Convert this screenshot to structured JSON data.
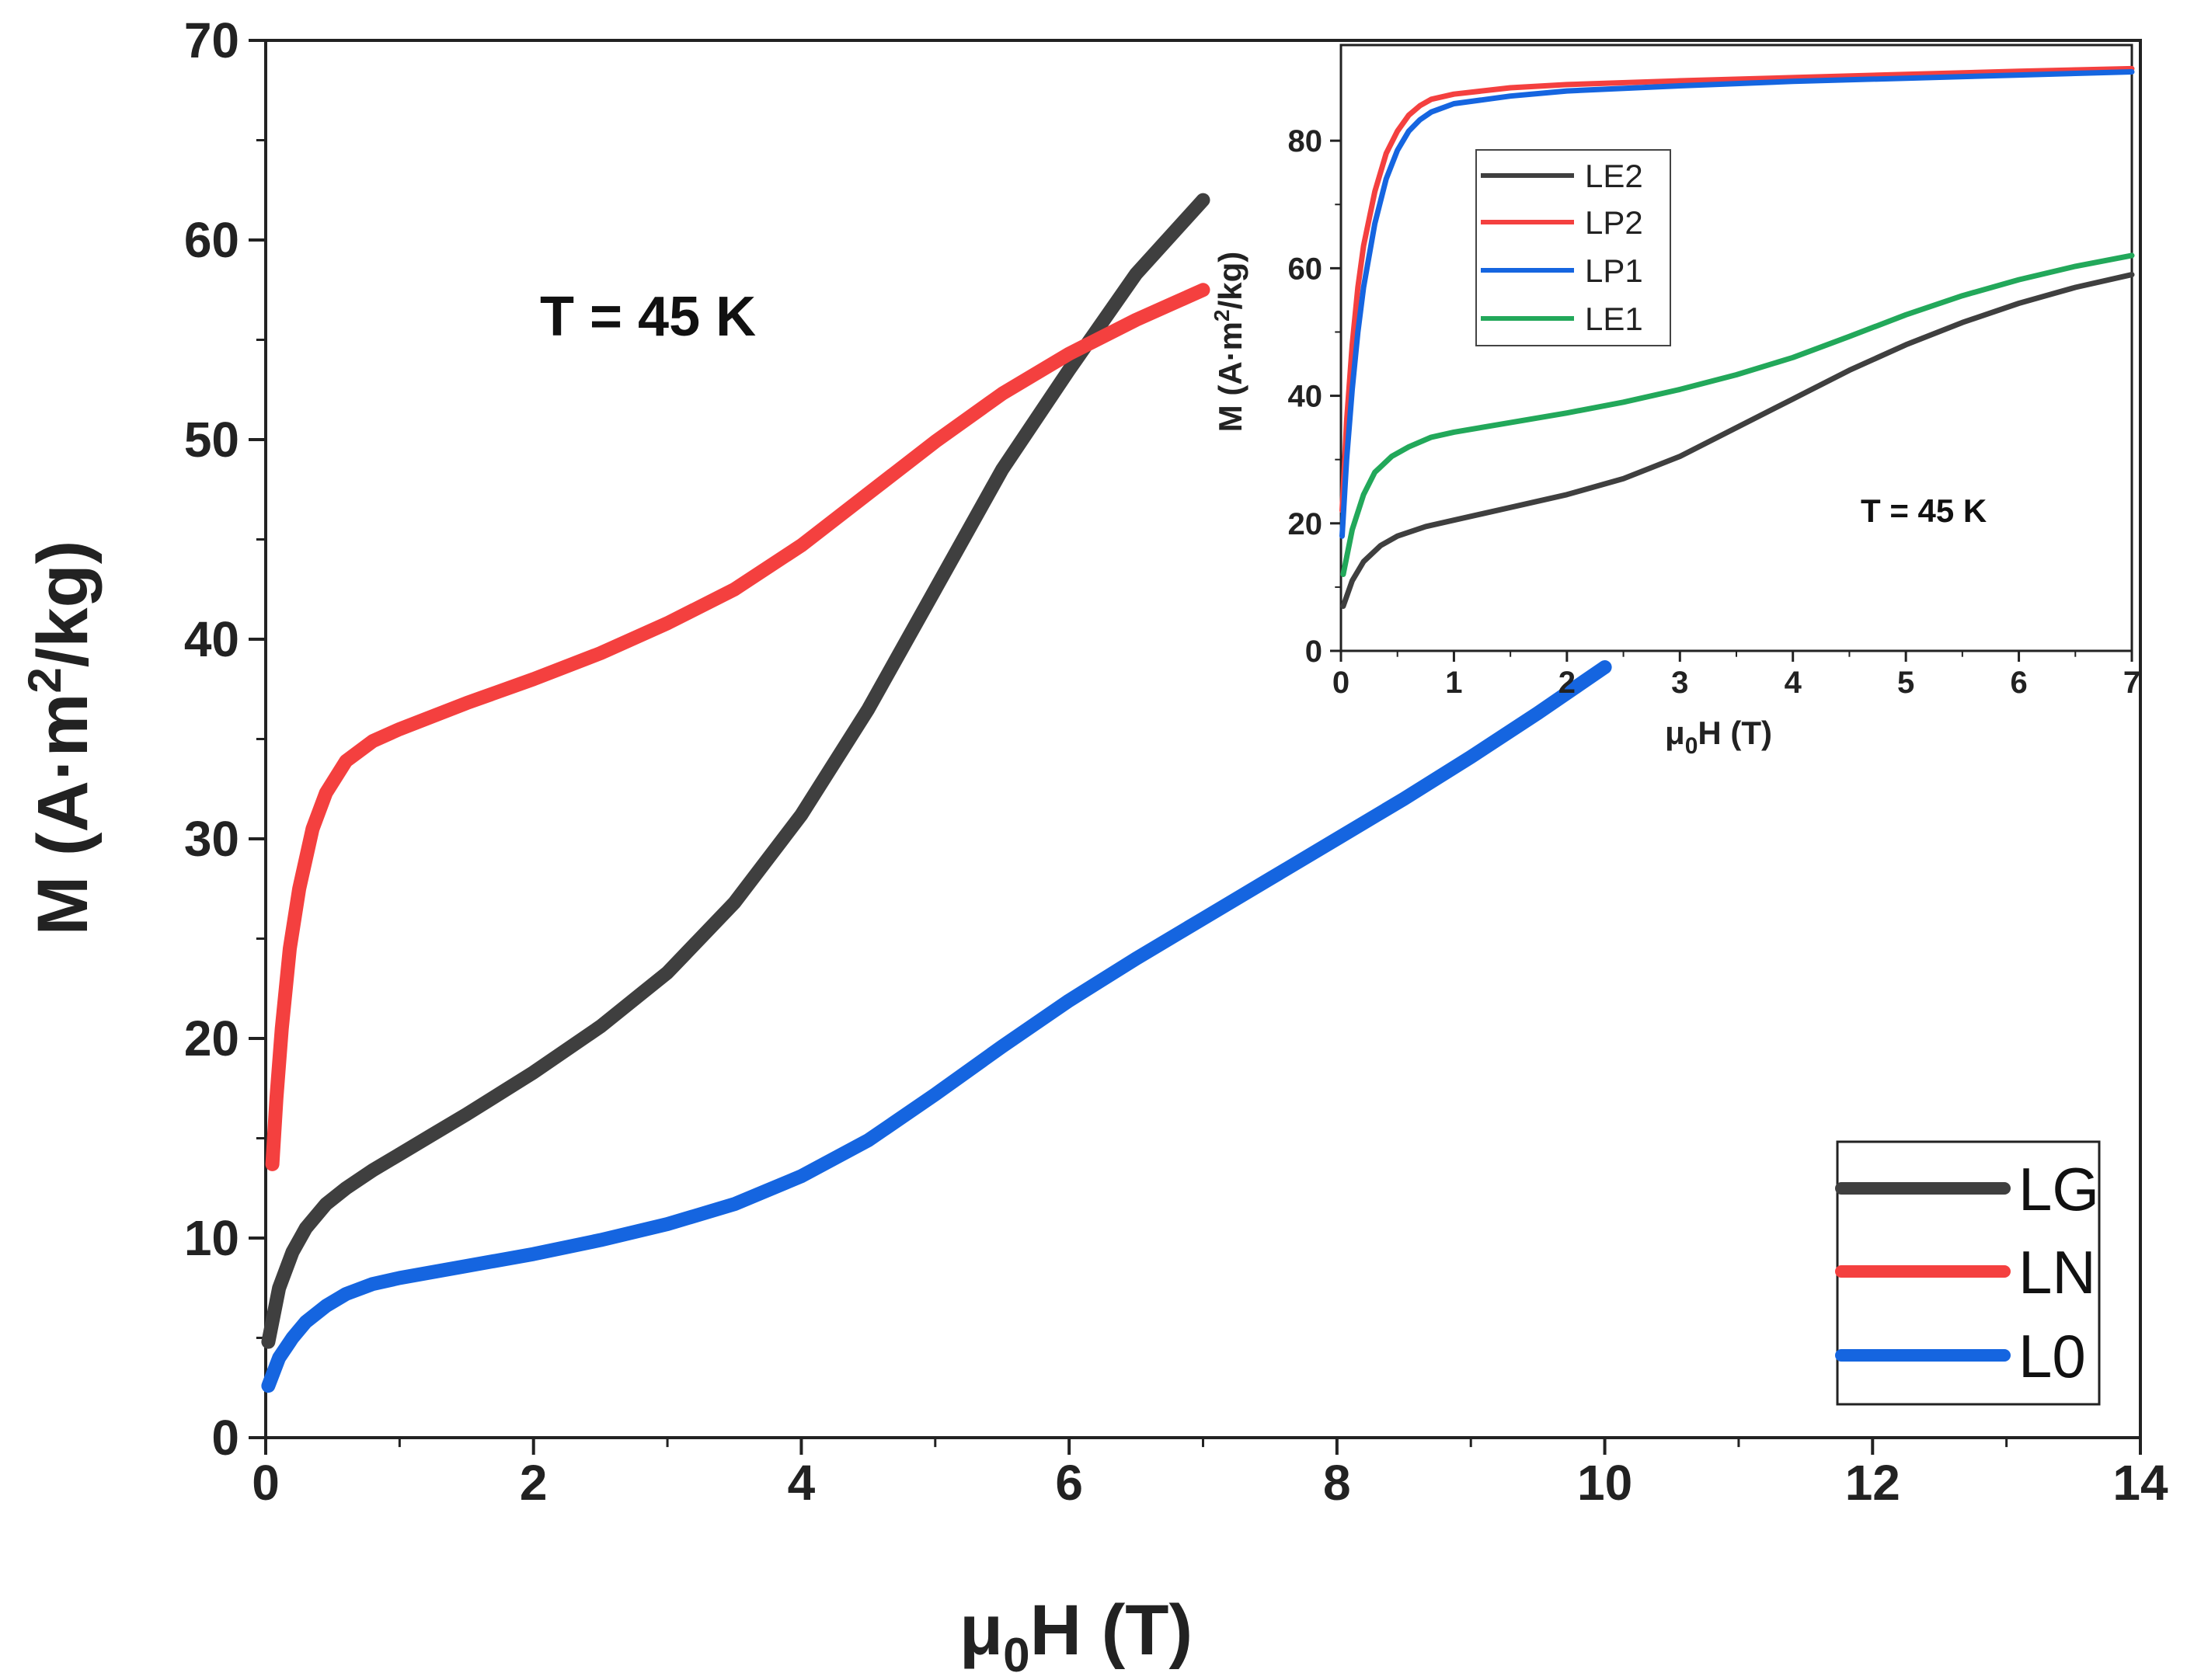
{
  "chart_data": [
    {
      "id": "main",
      "type": "line",
      "title": "",
      "annotation": "T = 45 K",
      "xlabel": {
        "base": "μ",
        "sub": "0",
        "rest": "H (T)"
      },
      "ylabel": {
        "pre": "M (A·m",
        "sup": "2",
        "post": "/kg)"
      },
      "xlim": [
        0,
        14
      ],
      "ylim": [
        0,
        70
      ],
      "xticks": [
        0,
        2,
        4,
        6,
        8,
        10,
        12,
        14
      ],
      "yticks": [
        0,
        10,
        20,
        30,
        40,
        50,
        60,
        70
      ],
      "xtick_labels": [
        "0",
        "2",
        "4",
        "6",
        "8",
        "10",
        "12",
        "14"
      ],
      "ytick_labels": [
        "0",
        "10",
        "20",
        "30",
        "40",
        "50",
        "60",
        "70"
      ],
      "legend_position": "bottom-right",
      "series": [
        {
          "name": "LG",
          "color": "#3f3f3f",
          "x": [
            0.02,
            0.1,
            0.2,
            0.3,
            0.45,
            0.6,
            0.8,
            1.0,
            1.25,
            1.5,
            2.0,
            2.5,
            3.0,
            3.5,
            4.0,
            4.5,
            5.0,
            5.5,
            6.0,
            6.5,
            7.0
          ],
          "y": [
            4.8,
            7.5,
            9.3,
            10.5,
            11.7,
            12.5,
            13.4,
            14.2,
            15.2,
            16.2,
            18.3,
            20.6,
            23.3,
            26.8,
            31.2,
            36.5,
            42.5,
            48.5,
            53.5,
            58.3,
            62.0
          ]
        },
        {
          "name": "LN",
          "color": "#f4403f",
          "x": [
            0.05,
            0.08,
            0.12,
            0.18,
            0.25,
            0.35,
            0.45,
            0.6,
            0.8,
            1.0,
            1.5,
            2.0,
            2.5,
            3.0,
            3.5,
            4.0,
            4.5,
            5.0,
            5.5,
            6.0,
            6.5,
            7.0
          ],
          "y": [
            13.7,
            17.0,
            20.5,
            24.5,
            27.5,
            30.5,
            32.3,
            33.9,
            34.9,
            35.5,
            36.8,
            38.0,
            39.3,
            40.8,
            42.5,
            44.7,
            47.3,
            49.9,
            52.3,
            54.3,
            56.0,
            57.5
          ]
        },
        {
          "name": "L0",
          "color": "#1565e0",
          "x": [
            0.02,
            0.1,
            0.2,
            0.3,
            0.45,
            0.6,
            0.8,
            1.0,
            1.5,
            2.0,
            2.5,
            3.0,
            3.5,
            4.0,
            4.5,
            5.0,
            5.5,
            6.0,
            6.5,
            7.0,
            7.5,
            8.0,
            8.5,
            9.0,
            9.5,
            10.0
          ],
          "y": [
            2.6,
            4.0,
            5.0,
            5.8,
            6.6,
            7.2,
            7.7,
            8.0,
            8.6,
            9.2,
            9.9,
            10.7,
            11.7,
            13.1,
            14.9,
            17.2,
            19.6,
            21.9,
            24.0,
            26.0,
            28.0,
            30.0,
            32.0,
            34.1,
            36.3,
            38.6
          ]
        }
      ]
    },
    {
      "id": "inset",
      "type": "line",
      "title": "",
      "annotation": "T = 45 K",
      "xlabel": {
        "base": "μ",
        "sub": "0",
        "rest": "H (T)"
      },
      "ylabel": {
        "pre": "M (A·m",
        "sup": "2",
        "post": "/kg)"
      },
      "xlim": [
        0,
        7
      ],
      "ylim": [
        0,
        95
      ],
      "xticks": [
        0,
        1,
        2,
        3,
        4,
        5,
        6,
        7
      ],
      "yticks": [
        0,
        20,
        40,
        60,
        80
      ],
      "xtick_labels": [
        "0",
        "1",
        "2",
        "3",
        "4",
        "5",
        "6",
        "7"
      ],
      "ytick_labels": [
        "0",
        "20",
        "40",
        "60",
        "80"
      ],
      "legend_position": "top-left",
      "series": [
        {
          "name": "LE2",
          "color": "#3f3f3f",
          "x": [
            0.02,
            0.1,
            0.2,
            0.35,
            0.5,
            0.75,
            1.0,
            1.5,
            2.0,
            2.5,
            3.0,
            3.5,
            4.0,
            4.5,
            5.0,
            5.5,
            6.0,
            6.5,
            7.0
          ],
          "y": [
            7.0,
            11.0,
            14.0,
            16.5,
            18.0,
            19.5,
            20.5,
            22.5,
            24.5,
            27.0,
            30.5,
            35.0,
            39.5,
            44.0,
            48.0,
            51.5,
            54.5,
            57.0,
            59.0
          ]
        },
        {
          "name": "LP2",
          "color": "#f4403f",
          "x": [
            0.01,
            0.05,
            0.1,
            0.15,
            0.2,
            0.3,
            0.4,
            0.5,
            0.6,
            0.7,
            0.8,
            1.0,
            1.5,
            2.0,
            3.0,
            4.0,
            5.0,
            6.0,
            7.0
          ],
          "y": [
            22.0,
            36.0,
            48.0,
            57.0,
            63.5,
            72.0,
            78.0,
            81.5,
            84.0,
            85.5,
            86.5,
            87.3,
            88.3,
            88.8,
            89.4,
            89.9,
            90.4,
            90.9,
            91.3
          ]
        },
        {
          "name": "LP1",
          "color": "#1565e0",
          "x": [
            0.01,
            0.05,
            0.1,
            0.15,
            0.2,
            0.3,
            0.4,
            0.5,
            0.6,
            0.7,
            0.8,
            1.0,
            1.5,
            2.0,
            3.0,
            4.0,
            5.0,
            6.0,
            7.0
          ],
          "y": [
            18.0,
            30.0,
            41.0,
            50.0,
            57.0,
            67.0,
            74.0,
            78.5,
            81.5,
            83.3,
            84.5,
            85.8,
            87.0,
            87.8,
            88.6,
            89.3,
            89.8,
            90.3,
            90.8
          ]
        },
        {
          "name": "LE1",
          "color": "#22a85a",
          "x": [
            0.02,
            0.1,
            0.2,
            0.3,
            0.45,
            0.6,
            0.8,
            1.0,
            1.5,
            2.0,
            2.5,
            3.0,
            3.5,
            4.0,
            4.5,
            5.0,
            5.5,
            6.0,
            6.5,
            7.0
          ],
          "y": [
            12.0,
            19.0,
            24.5,
            28.0,
            30.5,
            32.0,
            33.5,
            34.3,
            35.8,
            37.3,
            39.0,
            41.0,
            43.3,
            46.0,
            49.3,
            52.7,
            55.7,
            58.2,
            60.3,
            62.0
          ]
        }
      ]
    }
  ]
}
